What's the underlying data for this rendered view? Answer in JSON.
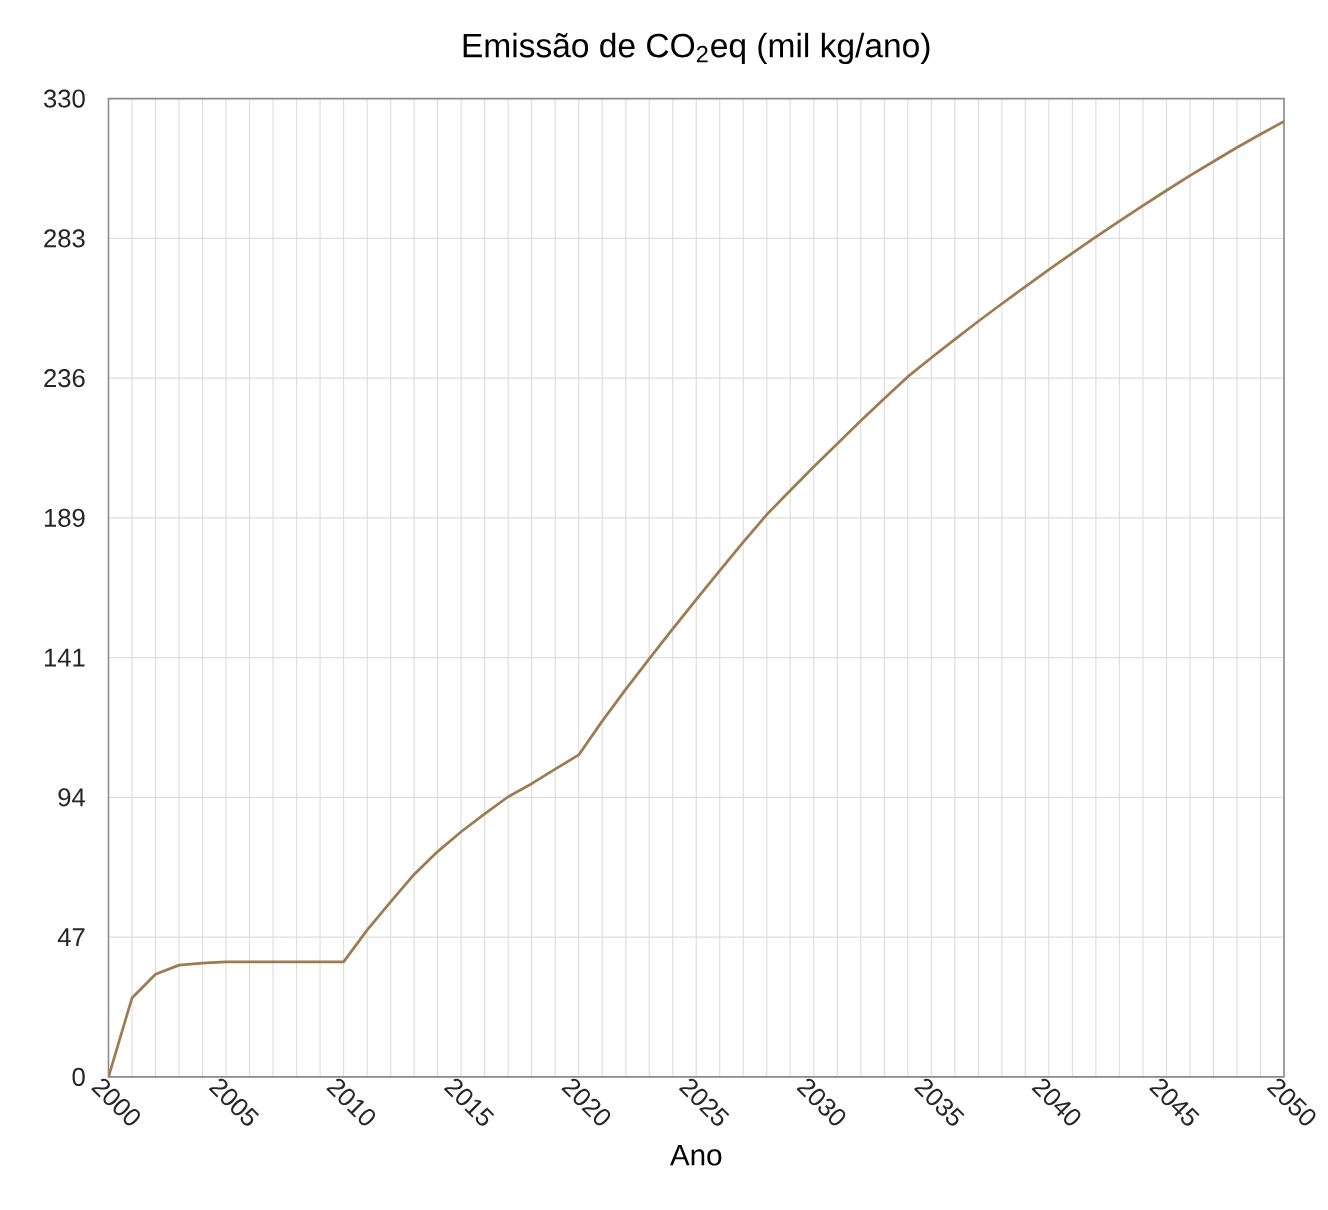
{
  "chart_data": {
    "type": "line",
    "title": "Emissão de CO$_{2}$eq (mil kg/ano)",
    "xlabel": "Ano",
    "x": [
      2000,
      2001,
      2002,
      2003,
      2004,
      2005,
      2006,
      2007,
      2008,
      2009,
      2010,
      2011,
      2012,
      2013,
      2014,
      2015,
      2016,
      2017,
      2018,
      2019,
      2020,
      2021,
      2022,
      2023,
      2024,
      2025,
      2026,
      2027,
      2028,
      2029,
      2030,
      2031,
      2032,
      2033,
      2034,
      2035,
      2036,
      2037,
      2038,
      2039,
      2040,
      2041,
      2042,
      2043,
      2044,
      2045,
      2046,
      2047,
      2048,
      2049,
      2050
    ],
    "series": [
      {
        "color": "#9c7d52",
        "values": [
          0,
          26.6,
          34.6,
          37.7,
          38.4,
          38.8,
          38.8,
          38.8,
          38.8,
          38.8,
          38.8,
          49.5,
          59,
          68.3,
          76,
          82.7,
          88.7,
          94.5,
          98.9,
          103.8,
          108.6,
          120,
          130.7,
          141,
          151.1,
          161,
          170.8,
          180.4,
          189.7,
          197.8,
          205.8,
          213.6,
          221.3,
          228.8,
          236.2,
          242.6,
          248.8,
          254.9,
          260.8,
          266.6,
          272.3,
          277.9,
          283.4,
          288.7,
          293.9,
          299,
          304,
          308.8,
          313.5,
          318,
          322.3
        ]
      }
    ],
    "xlim": [
      2000,
      2050
    ],
    "ylim": [
      0,
      330
    ],
    "xticks": [
      2000,
      {
        "value": 2001,
        "label": null
      },
      {
        "value": 2002,
        "label": null
      },
      {
        "value": 2003,
        "label": null
      },
      {
        "value": 2004,
        "label": null
      },
      2005,
      {
        "value": 2006,
        "label": null
      },
      {
        "value": 2007,
        "label": null
      },
      {
        "value": 2008,
        "label": null
      },
      {
        "value": 2009,
        "label": null
      },
      2010,
      {
        "value": 2011,
        "label": null
      },
      {
        "value": 2012,
        "label": null
      },
      {
        "value": 2013,
        "label": null
      },
      {
        "value": 2014,
        "label": null
      },
      2015,
      {
        "value": 2016,
        "label": null
      },
      {
        "value": 2017,
        "label": null
      },
      {
        "value": 2018,
        "label": null
      },
      {
        "value": 2019,
        "label": null
      },
      2020,
      {
        "value": 2021,
        "label": null
      },
      {
        "value": 2022,
        "label": null
      },
      {
        "value": 2023,
        "label": null
      },
      {
        "value": 2024,
        "label": null
      },
      2025,
      {
        "value": 2026,
        "label": null
      },
      {
        "value": 2027,
        "label": null
      },
      {
        "value": 2028,
        "label": null
      },
      {
        "value": 2029,
        "label": null
      },
      2030,
      {
        "value": 2031,
        "label": null
      },
      {
        "value": 2032,
        "label": null
      },
      {
        "value": 2033,
        "label": null
      },
      {
        "value": 2034,
        "label": null
      },
      2035,
      {
        "value": 2036,
        "label": null
      },
      {
        "value": 2037,
        "label": null
      },
      {
        "value": 2038,
        "label": null
      },
      {
        "value": 2039,
        "label": null
      },
      2040,
      {
        "value": 2041,
        "label": null
      },
      {
        "value": 2042,
        "label": null
      },
      {
        "value": 2043,
        "label": null
      },
      {
        "value": 2044,
        "label": null
      },
      2045,
      {
        "value": 2046,
        "label": null
      },
      {
        "value": 2047,
        "label": null
      },
      {
        "value": 2048,
        "label": null
      },
      {
        "value": 2049,
        "label": null
      },
      2050
    ],
    "yticks": [
      0,
      {
        "value": 47.14,
        "label": "47"
      },
      {
        "value": 94.29,
        "label": "94"
      },
      {
        "value": 141.43,
        "label": "141"
      },
      {
        "value": 188.57,
        "label": "189"
      },
      {
        "value": 235.71,
        "label": "236"
      },
      {
        "value": 282.86,
        "label": "283"
      },
      330
    ],
    "grid": true,
    "line_style": "solid"
  }
}
